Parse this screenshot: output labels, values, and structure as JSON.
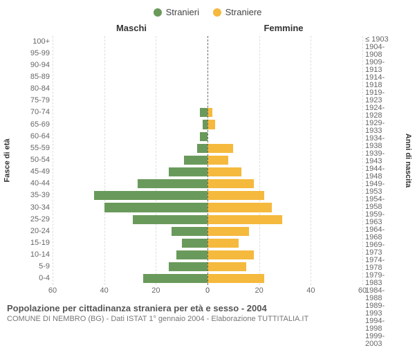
{
  "legend": {
    "male": {
      "label": "Stranieri",
      "color": "#6a9a5b"
    },
    "female": {
      "label": "Straniere",
      "color": "#f5b93d"
    }
  },
  "headers": {
    "male": "Maschi",
    "female": "Femmine"
  },
  "axis_titles": {
    "left": "Fasce di età",
    "right": "Anni di nascita"
  },
  "bar_style": {
    "max_value": 60,
    "male_color": "#6a9a5b",
    "female_color": "#f5b93d"
  },
  "grid": {
    "ticks": [
      0,
      20,
      40,
      60
    ],
    "color": "#dddddd"
  },
  "rows": [
    {
      "age": "100+",
      "birth": "≤ 1903",
      "m": 0,
      "f": 0
    },
    {
      "age": "95-99",
      "birth": "1904-1908",
      "m": 0,
      "f": 0
    },
    {
      "age": "90-94",
      "birth": "1909-1913",
      "m": 0,
      "f": 0
    },
    {
      "age": "85-89",
      "birth": "1914-1918",
      "m": 0,
      "f": 0
    },
    {
      "age": "80-84",
      "birth": "1919-1923",
      "m": 0,
      "f": 0
    },
    {
      "age": "75-79",
      "birth": "1924-1928",
      "m": 0,
      "f": 0
    },
    {
      "age": "70-74",
      "birth": "1929-1933",
      "m": 3,
      "f": 2
    },
    {
      "age": "65-69",
      "birth": "1934-1938",
      "m": 2,
      "f": 3
    },
    {
      "age": "60-64",
      "birth": "1939-1943",
      "m": 3,
      "f": 0
    },
    {
      "age": "55-59",
      "birth": "1944-1948",
      "m": 4,
      "f": 10
    },
    {
      "age": "50-54",
      "birth": "1949-1953",
      "m": 9,
      "f": 8
    },
    {
      "age": "45-49",
      "birth": "1954-1958",
      "m": 15,
      "f": 13
    },
    {
      "age": "40-44",
      "birth": "1959-1963",
      "m": 27,
      "f": 18
    },
    {
      "age": "35-39",
      "birth": "1964-1968",
      "m": 44,
      "f": 22
    },
    {
      "age": "30-34",
      "birth": "1969-1973",
      "m": 40,
      "f": 25
    },
    {
      "age": "25-29",
      "birth": "1974-1978",
      "m": 29,
      "f": 29
    },
    {
      "age": "20-24",
      "birth": "1979-1983",
      "m": 14,
      "f": 16
    },
    {
      "age": "15-19",
      "birth": "1984-1988",
      "m": 10,
      "f": 12
    },
    {
      "age": "10-14",
      "birth": "1989-1993",
      "m": 12,
      "f": 18
    },
    {
      "age": "5-9",
      "birth": "1994-1998",
      "m": 15,
      "f": 15
    },
    {
      "age": "0-4",
      "birth": "1999-2003",
      "m": 25,
      "f": 22
    }
  ],
  "x_ticks_left": [
    "60",
    "40",
    "20",
    "0"
  ],
  "x_ticks_right": [
    "0",
    "20",
    "40",
    "60"
  ],
  "titles": {
    "main": "Popolazione per cittadinanza straniera per età e sesso - 2004",
    "sub": "COMUNE DI NEMBRO (BG) - Dati ISTAT 1° gennaio 2004 - Elaborazione TUTTITALIA.IT"
  },
  "background_color": "#ffffff"
}
